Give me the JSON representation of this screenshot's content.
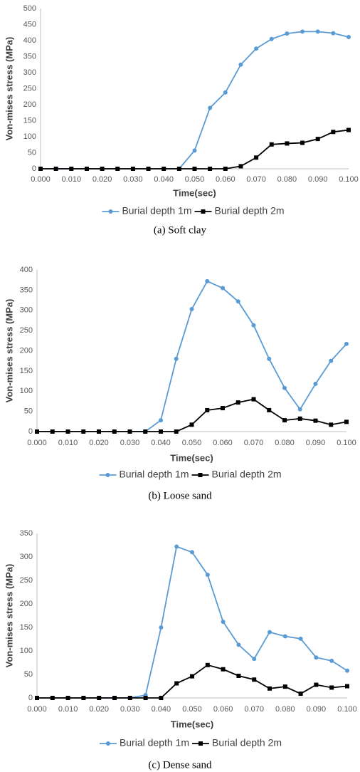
{
  "chart_data": [
    {
      "type": "line",
      "caption": "(a)  Soft  clay",
      "x_label": "Time(sec)",
      "y_label": "Von-mises stress (MPa)",
      "x": [
        0,
        0.005,
        0.01,
        0.015,
        0.02,
        0.025,
        0.03,
        0.035,
        0.04,
        0.045,
        0.05,
        0.055,
        0.06,
        0.065,
        0.07,
        0.075,
        0.08,
        0.085,
        0.09,
        0.095,
        0.1
      ],
      "xlim": [
        0,
        0.1
      ],
      "xticks": [
        {
          "value": 0,
          "label": "0.000"
        },
        {
          "value": 0.01,
          "label": "0.010"
        },
        {
          "value": 0.02,
          "label": "0.020"
        },
        {
          "value": 0.03,
          "label": "0.030"
        },
        {
          "value": 0.04,
          "label": "0.040"
        },
        {
          "value": 0.05,
          "label": "0.050"
        },
        {
          "value": 0.06,
          "label": "0.060"
        },
        {
          "value": 0.07,
          "label": "0.070"
        },
        {
          "value": 0.08,
          "label": "0.080"
        },
        {
          "value": 0.09,
          "label": "0.090"
        },
        {
          "value": 0.1,
          "label": "0.100"
        }
      ],
      "ylim": [
        0,
        500
      ],
      "yticks": [
        0,
        50,
        100,
        150,
        200,
        250,
        300,
        350,
        400,
        450,
        500
      ],
      "legend": "bottom",
      "series": [
        {
          "name": "Burial depth 1m",
          "color": "#5b9bd5",
          "marker": "circle",
          "values": [
            0,
            0,
            0,
            0,
            0,
            0,
            0,
            0,
            0,
            0,
            57,
            190,
            238,
            325,
            375,
            405,
            422,
            428,
            428,
            423,
            411
          ]
        },
        {
          "name": "Burial depth 2m",
          "color": "#000000",
          "marker": "square",
          "values": [
            0,
            0,
            0,
            0,
            0,
            0,
            0,
            0,
            0,
            0,
            0,
            0,
            0,
            8,
            35,
            76,
            79,
            81,
            93,
            115,
            121
          ]
        }
      ]
    },
    {
      "type": "line",
      "caption": "(b)  Loose  sand",
      "x_label": "Time(sec)",
      "y_label": "Von-mises stress (MPa)",
      "x": [
        0,
        0.005,
        0.01,
        0.015,
        0.02,
        0.025,
        0.03,
        0.035,
        0.04,
        0.045,
        0.05,
        0.055,
        0.06,
        0.065,
        0.07,
        0.075,
        0.08,
        0.085,
        0.09,
        0.095,
        0.1
      ],
      "xlim": [
        0,
        0.1
      ],
      "xticks": [
        {
          "value": 0,
          "label": "0.000"
        },
        {
          "value": 0.01,
          "label": "0.010"
        },
        {
          "value": 0.02,
          "label": "0.020"
        },
        {
          "value": 0.03,
          "label": "0.030"
        },
        {
          "value": 0.04,
          "label": "0.040"
        },
        {
          "value": 0.05,
          "label": "0.050"
        },
        {
          "value": 0.06,
          "label": "0.060"
        },
        {
          "value": 0.07,
          "label": "0.070"
        },
        {
          "value": 0.08,
          "label": "0.080"
        },
        {
          "value": 0.09,
          "label": "0.090"
        },
        {
          "value": 0.1,
          "label": "0.100"
        }
      ],
      "ylim": [
        0,
        400
      ],
      "yticks": [
        0,
        50,
        100,
        150,
        200,
        250,
        300,
        350,
        400
      ],
      "legend": "bottom",
      "series": [
        {
          "name": "Burial depth 1m",
          "color": "#5b9bd5",
          "marker": "circle",
          "values": [
            0,
            0,
            0,
            0,
            0,
            0,
            0,
            0,
            28,
            180,
            303,
            372,
            355,
            322,
            263,
            180,
            108,
            55,
            118,
            175,
            217
          ]
        },
        {
          "name": "Burial depth 2m",
          "color": "#000000",
          "marker": "square",
          "values": [
            0,
            0,
            0,
            0,
            0,
            0,
            0,
            0,
            0,
            0,
            17,
            53,
            58,
            72,
            80,
            53,
            28,
            32,
            27,
            17,
            24
          ]
        }
      ]
    },
    {
      "type": "line",
      "caption": "(c)  Dense  sand",
      "x_label": "Time(sec)",
      "y_label": "Von-mises stress (MPa)",
      "x": [
        0,
        0.005,
        0.01,
        0.015,
        0.02,
        0.025,
        0.03,
        0.035,
        0.04,
        0.045,
        0.05,
        0.055,
        0.06,
        0.065,
        0.07,
        0.075,
        0.08,
        0.085,
        0.09,
        0.095,
        0.1
      ],
      "xlim": [
        0,
        0.1
      ],
      "xticks": [
        {
          "value": 0,
          "label": "0.000"
        },
        {
          "value": 0.01,
          "label": "0.010"
        },
        {
          "value": 0.02,
          "label": "0.020"
        },
        {
          "value": 0.03,
          "label": "0.030"
        },
        {
          "value": 0.04,
          "label": "0.040"
        },
        {
          "value": 0.05,
          "label": "0.050"
        },
        {
          "value": 0.06,
          "label": "0.060"
        },
        {
          "value": 0.07,
          "label": "0.070"
        },
        {
          "value": 0.08,
          "label": "0.080"
        },
        {
          "value": 0.09,
          "label": "0.090"
        },
        {
          "value": 0.1,
          "label": "0.100"
        }
      ],
      "ylim": [
        0,
        350
      ],
      "yticks": [
        0,
        50,
        100,
        150,
        200,
        250,
        300,
        350
      ],
      "legend": "bottom",
      "series": [
        {
          "name": "Burial depth 1m",
          "color": "#5b9bd5",
          "marker": "circle",
          "values": [
            0,
            0,
            0,
            0,
            0,
            0,
            0,
            6,
            150,
            322,
            310,
            262,
            162,
            113,
            83,
            140,
            131,
            126,
            86,
            79,
            58
          ]
        },
        {
          "name": "Burial depth 2m",
          "color": "#000000",
          "marker": "square",
          "values": [
            0,
            0,
            0,
            0,
            0,
            0,
            0,
            0,
            0,
            31,
            46,
            70,
            61,
            47,
            39,
            20,
            24,
            9,
            28,
            22,
            25
          ]
        }
      ]
    }
  ]
}
